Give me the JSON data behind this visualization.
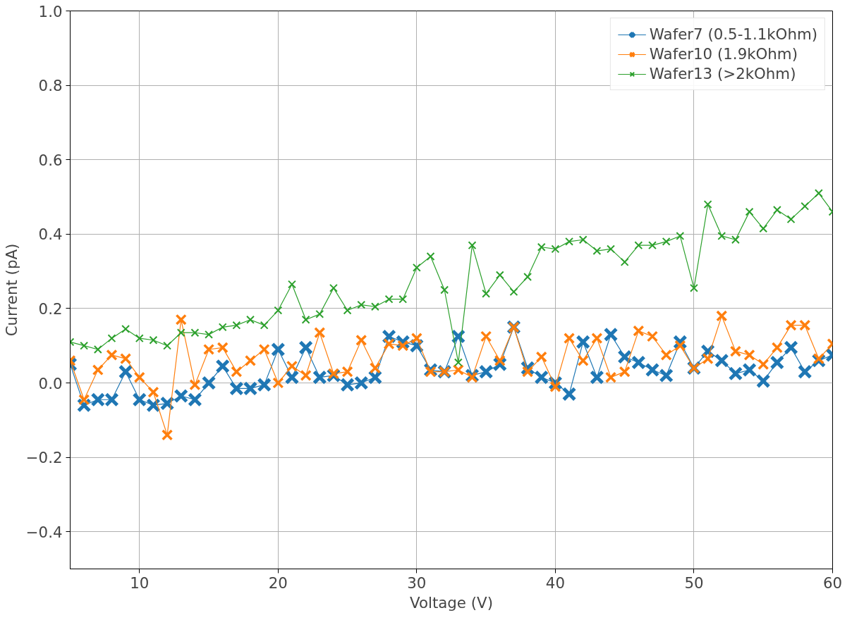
{
  "chart_data": {
    "type": "line",
    "xlabel": "Voltage (V)",
    "ylabel": "Current (pA)",
    "x": [
      5,
      6,
      7,
      8,
      9,
      10,
      11,
      12,
      13,
      14,
      15,
      16,
      17,
      18,
      19,
      20,
      21,
      22,
      23,
      24,
      25,
      26,
      27,
      28,
      29,
      30,
      31,
      32,
      33,
      34,
      35,
      36,
      37,
      38,
      39,
      40,
      41,
      42,
      43,
      44,
      45,
      46,
      47,
      48,
      49,
      50,
      51,
      52,
      53,
      54,
      55,
      56,
      57,
      58,
      59,
      60
    ],
    "series": [
      {
        "name": "Wafer7 (0.5-1.1kOhm)",
        "color": "#1f77b4",
        "values": [
          0.05,
          -0.06,
          -0.045,
          -0.045,
          0.03,
          -0.045,
          -0.06,
          -0.055,
          -0.035,
          -0.045,
          0.0,
          0.045,
          -0.015,
          -0.015,
          -0.005,
          0.09,
          0.015,
          0.095,
          0.015,
          0.02,
          -0.005,
          0.0,
          0.015,
          0.125,
          0.11,
          0.1,
          0.035,
          0.03,
          0.125,
          0.02,
          0.03,
          0.05,
          0.15,
          0.04,
          0.015,
          0.0,
          -0.03,
          0.11,
          0.015,
          0.13,
          0.07,
          0.055,
          0.035,
          0.02,
          0.11,
          0.04,
          0.085,
          0.06,
          0.025,
          0.035,
          0.005,
          0.055,
          0.095,
          0.03,
          0.06,
          0.075
        ]
      },
      {
        "name": "Wafer10 (1.9kOhm)",
        "color": "#ff7f0e",
        "values": [
          0.06,
          -0.045,
          0.035,
          0.075,
          0.065,
          0.015,
          -0.025,
          -0.14,
          0.17,
          -0.005,
          0.09,
          0.095,
          0.03,
          0.06,
          0.09,
          0.0,
          0.045,
          0.02,
          0.135,
          0.025,
          0.03,
          0.115,
          0.04,
          0.105,
          0.1,
          0.12,
          0.03,
          0.03,
          0.035,
          0.015,
          0.125,
          0.06,
          0.15,
          0.03,
          0.07,
          -0.01,
          0.12,
          0.06,
          0.12,
          0.015,
          0.03,
          0.14,
          0.125,
          0.075,
          0.1,
          0.04,
          0.065,
          0.18,
          0.085,
          0.075,
          0.05,
          0.095,
          0.155,
          0.155,
          0.065,
          0.105
        ]
      },
      {
        "name": "Wafer13 (>2kOhm)",
        "color": "#2ca02c",
        "values": [
          0.11,
          0.1,
          0.09,
          0.12,
          0.145,
          0.12,
          0.115,
          0.1,
          0.135,
          0.135,
          0.13,
          0.15,
          0.155,
          0.17,
          0.155,
          0.195,
          0.265,
          0.17,
          0.185,
          0.255,
          0.195,
          0.21,
          0.205,
          0.225,
          0.225,
          0.31,
          0.34,
          0.25,
          0.055,
          0.37,
          0.24,
          0.29,
          0.245,
          0.285,
          0.365,
          0.36,
          0.38,
          0.385,
          0.355,
          0.36,
          0.325,
          0.37,
          0.37,
          0.38,
          0.395,
          0.255,
          0.48,
          0.395,
          0.385,
          0.46,
          0.415,
          0.465,
          0.44,
          0.475,
          0.51,
          0.46
        ]
      }
    ],
    "xlim": [
      5,
      60
    ],
    "ylim": [
      -0.5,
      1.0
    ],
    "xticks": [
      10,
      20,
      30,
      40,
      50,
      60
    ],
    "yticks": [
      {
        "value": -0.4,
        "label": "−0.4"
      },
      {
        "value": -0.2,
        "label": "−0.2"
      },
      "0.0",
      "0.2",
      "0.4",
      "0.6",
      "0.8",
      "1.0"
    ],
    "grid": true,
    "legend": "top right",
    "marker": "cross",
    "line_style": "solid"
  }
}
